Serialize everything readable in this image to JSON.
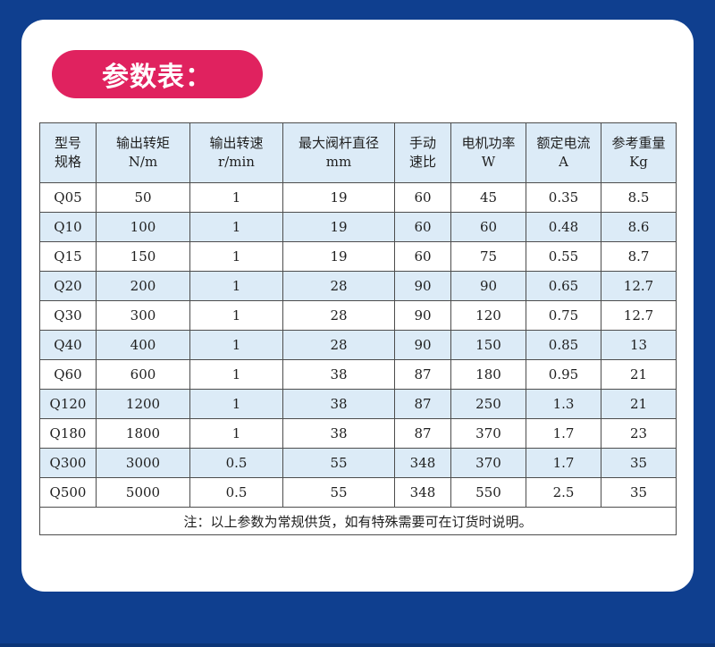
{
  "title": "参数表：",
  "colors": {
    "background": "#0f3f8f",
    "card": "#ffffff",
    "title_pill": "#e0225f",
    "row_alt": "#dcebf7",
    "border": "#4d4d4d"
  },
  "table": {
    "headers": [
      {
        "line1": "型号",
        "line2": "规格"
      },
      {
        "line1": "输出转矩",
        "line2": "N/m"
      },
      {
        "line1": "输出转速",
        "line2": "r/min"
      },
      {
        "line1": "最大阀杆直径",
        "line2": "mm"
      },
      {
        "line1": "手动",
        "line2": "速比"
      },
      {
        "line1": "电机功率",
        "line2": "W"
      },
      {
        "line1": "额定电流",
        "line2": "A"
      },
      {
        "line1": "参考重量",
        "line2": "Kg"
      }
    ],
    "rows": [
      [
        "Q05",
        "50",
        "1",
        "19",
        "60",
        "45",
        "0.35",
        "8.5"
      ],
      [
        "Q10",
        "100",
        "1",
        "19",
        "60",
        "60",
        "0.48",
        "8.6"
      ],
      [
        "Q15",
        "150",
        "1",
        "19",
        "60",
        "75",
        "0.55",
        "8.7"
      ],
      [
        "Q20",
        "200",
        "1",
        "28",
        "90",
        "90",
        "0.65",
        "12.7"
      ],
      [
        "Q30",
        "300",
        "1",
        "28",
        "90",
        "120",
        "0.75",
        "12.7"
      ],
      [
        "Q40",
        "400",
        "1",
        "28",
        "90",
        "150",
        "0.85",
        "13"
      ],
      [
        "Q60",
        "600",
        "1",
        "38",
        "87",
        "180",
        "0.95",
        "21"
      ],
      [
        "Q120",
        "1200",
        "1",
        "38",
        "87",
        "250",
        "1.3",
        "21"
      ],
      [
        "Q180",
        "1800",
        "1",
        "38",
        "87",
        "370",
        "1.7",
        "23"
      ],
      [
        "Q300",
        "3000",
        "0.5",
        "55",
        "348",
        "370",
        "1.7",
        "35"
      ],
      [
        "Q500",
        "5000",
        "0.5",
        "55",
        "348",
        "550",
        "2.5",
        "35"
      ]
    ],
    "note": "注：以上参数为常规供货，如有特殊需要可在订货时说明。"
  }
}
